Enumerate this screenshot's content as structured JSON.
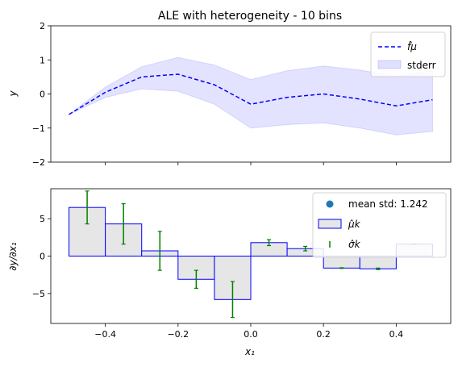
{
  "chart_data": [
    {
      "type": "line",
      "title": "ALE with heterogeneity - 10 bins",
      "xlabel": "",
      "ylabel": "y",
      "xlim": [
        -0.55,
        0.55
      ],
      "ylim": [
        -2,
        2
      ],
      "x_ticks": [
        -0.4,
        -0.2,
        0.0,
        0.2,
        0.4
      ],
      "y_ticks": [
        -2,
        -1,
        0,
        1,
        2
      ],
      "y_tick_labels": [
        "−2",
        "−1",
        "0",
        "1",
        "2"
      ],
      "x": [
        -0.5,
        -0.4,
        -0.3,
        -0.2,
        -0.1,
        0.0,
        0.1,
        0.2,
        0.3,
        0.4,
        0.5
      ],
      "series": [
        {
          "name": "f̂μ",
          "values": [
            -0.6,
            0.05,
            0.5,
            0.58,
            0.27,
            -0.3,
            -0.1,
            0.0,
            -0.15,
            -0.35,
            -0.17
          ],
          "color": "#0000ff",
          "style": "dashed"
        }
      ],
      "band": {
        "name": "stderr",
        "lower": [
          -0.6,
          -0.1,
          0.15,
          0.08,
          -0.3,
          -1.0,
          -0.9,
          -0.85,
          -1.0,
          -1.2,
          -1.1
        ],
        "upper": [
          -0.6,
          0.2,
          0.8,
          1.07,
          0.85,
          0.42,
          0.68,
          0.82,
          0.7,
          0.52,
          0.7
        ],
        "color": "#0000ff"
      },
      "legend": {
        "position": "top-right",
        "entries": [
          "f̂μ",
          "stderr"
        ]
      },
      "grid": false
    },
    {
      "type": "bar",
      "title": "",
      "xlabel": "x₁",
      "ylabel": "∂y/∂x₁",
      "xlim": [
        -0.55,
        0.55
      ],
      "ylim": [
        -9,
        9
      ],
      "x_ticks": [
        -0.4,
        -0.2,
        0.0,
        0.2,
        0.4
      ],
      "x_tick_labels": [
        "−0.4",
        "−0.2",
        "0.0",
        "0.2",
        "0.4"
      ],
      "y_ticks": [
        -5,
        0,
        5
      ],
      "y_tick_labels": [
        "−5",
        "0",
        "5"
      ],
      "bin_edges": [
        -0.5,
        -0.4,
        -0.3,
        -0.2,
        -0.1,
        0.0,
        0.1,
        0.2,
        0.3,
        0.4,
        0.5
      ],
      "bin_centers": [
        -0.45,
        -0.35,
        -0.25,
        -0.15,
        -0.05,
        0.05,
        0.15,
        0.25,
        0.35,
        0.45
      ],
      "mu_k": [
        6.5,
        4.3,
        0.7,
        -3.1,
        -5.8,
        1.8,
        1.0,
        -1.6,
        -1.7,
        1.6
      ],
      "sigma_k": [
        2.2,
        2.7,
        2.6,
        1.2,
        2.4,
        0.4,
        0.3,
        0.05,
        0.1,
        0.05
      ],
      "bar_fill": "#e6e6e6",
      "bar_edge": "#0000ff",
      "errorbar_color": "#008000",
      "legend": {
        "position": "top-right",
        "entries": [
          "mean std: 1.242",
          "μ̂k",
          "σ̂k"
        ],
        "marker_color": "#1f77b4"
      },
      "grid": false
    }
  ]
}
